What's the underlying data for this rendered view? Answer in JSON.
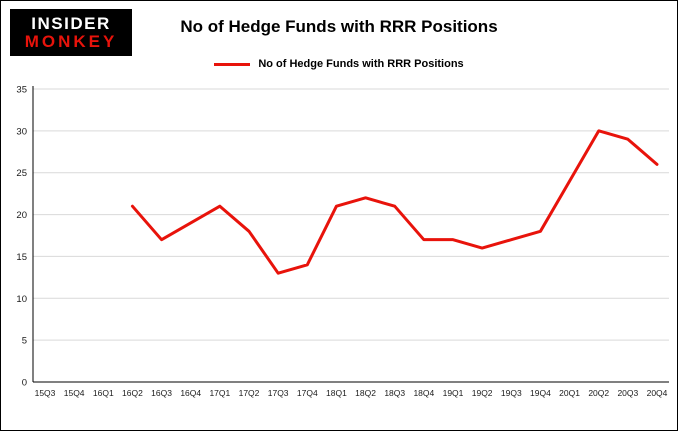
{
  "logo": {
    "line1": "INSIDER",
    "line2": "MONKEY"
  },
  "title": "No of Hedge Funds with RRR Positions",
  "legend": {
    "label": "No of Hedge Funds with RRR Positions"
  },
  "colors": {
    "line": "#e8130b",
    "grid": "#d9d9d9",
    "axis": "#000000",
    "tick_text": "#1a1a1a"
  },
  "chart_data": {
    "type": "line",
    "title": "No of Hedge Funds with RRR Positions",
    "categories": [
      "15Q3",
      "15Q4",
      "16Q1",
      "16Q2",
      "16Q3",
      "16Q4",
      "17Q1",
      "17Q2",
      "17Q3",
      "17Q4",
      "18Q1",
      "18Q2",
      "18Q3",
      "18Q4",
      "19Q1",
      "19Q2",
      "19Q3",
      "19Q4",
      "20Q1",
      "20Q2",
      "20Q3",
      "20Q4"
    ],
    "series": [
      {
        "name": "No of Hedge Funds with RRR Positions",
        "values": [
          null,
          null,
          null,
          21,
          17,
          19,
          21,
          18,
          13,
          14,
          21,
          22,
          21,
          17,
          17,
          16,
          17,
          18,
          24,
          30,
          29,
          26
        ]
      }
    ],
    "xlabel": "",
    "ylabel": "",
    "ylim": [
      0,
      35
    ],
    "yticks": [
      0,
      5,
      10,
      15,
      20,
      25,
      30,
      35
    ],
    "grid": true,
    "legend_position": "top"
  }
}
